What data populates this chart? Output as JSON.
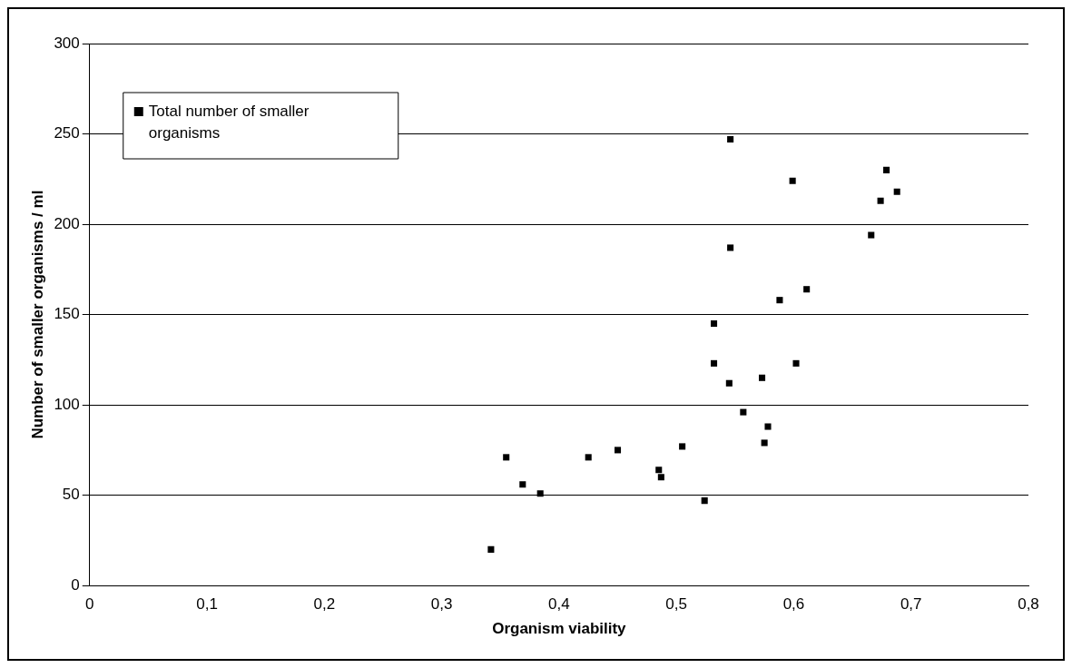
{
  "chart_data": {
    "type": "scatter",
    "xlabel": "Organism viability",
    "ylabel": "Number of smaller organisms / ml",
    "series": [
      {
        "name": "Total number of smaller organisms",
        "color": "#000000",
        "x": [
          0.342,
          0.355,
          0.369,
          0.384,
          0.425,
          0.45,
          0.485,
          0.487,
          0.505,
          0.524,
          0.532,
          0.532,
          0.545,
          0.546,
          0.546,
          0.557,
          0.573,
          0.575,
          0.578,
          0.588,
          0.599,
          0.602,
          0.611,
          0.666,
          0.674,
          0.679,
          0.688
        ],
        "values": [
          20,
          71,
          56,
          51,
          71,
          75,
          64,
          60,
          77,
          47,
          145,
          123,
          112,
          247,
          187,
          96,
          115,
          79,
          88,
          158,
          224,
          123,
          164,
          194,
          213,
          230,
          218
        ]
      }
    ],
    "xlim": [
      0,
      0.8
    ],
    "xticks": [
      {
        "value": 0,
        "label": "0"
      },
      {
        "value": 0.1,
        "label": "0,1"
      },
      {
        "value": 0.2,
        "label": "0,2"
      },
      {
        "value": 0.3,
        "label": "0,3"
      },
      {
        "value": 0.4,
        "label": "0,4"
      },
      {
        "value": 0.5,
        "label": "0,5"
      },
      {
        "value": 0.6,
        "label": "0,6"
      },
      {
        "value": 0.7,
        "label": "0,7"
      },
      {
        "value": 0.8,
        "label": "0,8"
      }
    ],
    "ylim": [
      0,
      300
    ],
    "yticks": [
      0,
      50,
      100,
      150,
      200,
      250,
      300
    ],
    "grid": "y",
    "legend": "top left",
    "marker": "square"
  }
}
